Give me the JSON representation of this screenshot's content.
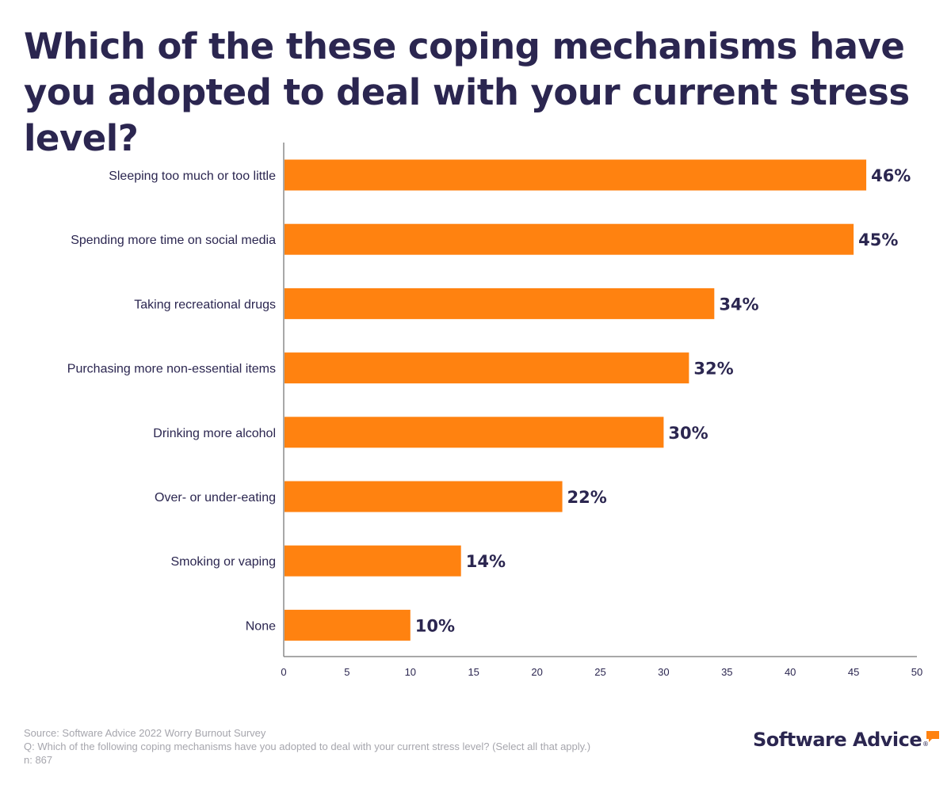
{
  "title": "Which of the these coping mechanisms have you adopted to deal with your current stress level?",
  "chart_data": {
    "type": "bar",
    "orientation": "horizontal",
    "title": "Which of the these coping mechanisms have you adopted to deal with your current stress level?",
    "categories": [
      "Sleeping too much or too little",
      "Spending more time on social media",
      "Taking recreational drugs",
      "Purchasing more non-essential items",
      "Drinking more alcohol",
      "Over- or under-eating",
      "Smoking or vaping",
      "None"
    ],
    "values": [
      46,
      45,
      34,
      32,
      30,
      22,
      14,
      10
    ],
    "value_labels": [
      "46%",
      "45%",
      "34%",
      "32%",
      "30%",
      "22%",
      "14%",
      "10%"
    ],
    "xlabel": "",
    "ylabel": "",
    "xlim": [
      0,
      50
    ],
    "xticks": [
      0,
      5,
      10,
      15,
      20,
      25,
      30,
      35,
      40,
      45,
      50
    ],
    "grid": false,
    "legend": "none",
    "bar_color": "#ff8210",
    "text_color": "#2b2650"
  },
  "footer": {
    "source": "Source: Software Advice 2022 Worry Burnout Survey",
    "question": "Q: Which of the following coping mechanisms have you adopted to deal with your current stress level? (Select all that apply.)",
    "sample": "n: 867"
  },
  "logo": {
    "text": "Software Advice",
    "registered": "®",
    "accent_color": "#ff8210"
  }
}
